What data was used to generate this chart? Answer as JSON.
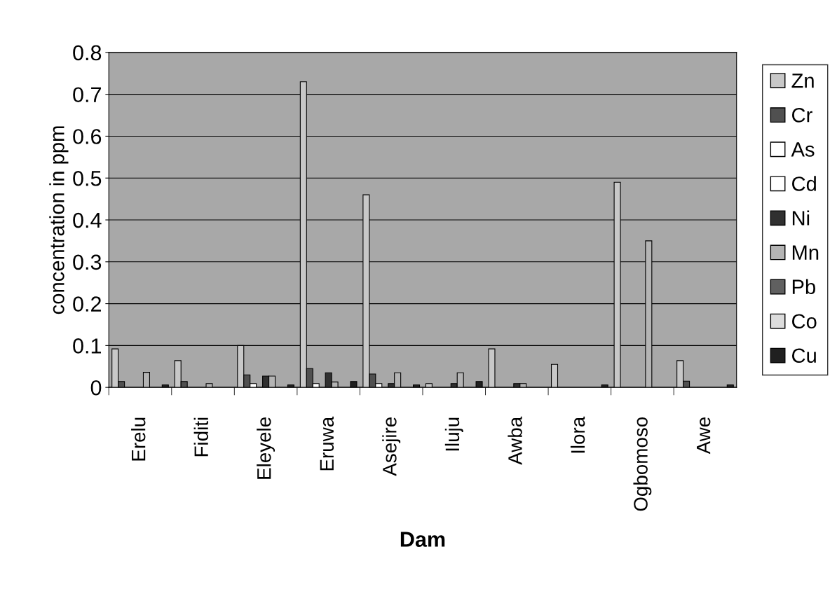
{
  "chart_data": {
    "type": "bar",
    "xlabel": "Dam",
    "ylabel": "concentration in ppm",
    "categories": [
      "Erelu",
      "Fiditi",
      "Eleyele",
      "Eruwa",
      "Asejire",
      "Iluju",
      "Awba",
      "Ilora",
      "Ogbomoso",
      "Awe"
    ],
    "series": [
      {
        "name": "Zn",
        "color": "#c8c8c8",
        "values": [
          0.092,
          0.064,
          0.1,
          0.73,
          0.46,
          0.009,
          0.092,
          0.055,
          0.49,
          0.064
        ]
      },
      {
        "name": "Cr",
        "color": "#505050",
        "values": [
          0.014,
          0.014,
          0.03,
          0.045,
          0.032,
          null,
          null,
          null,
          null,
          0.015
        ]
      },
      {
        "name": "As",
        "color": "#ffffff",
        "values": [
          null,
          null,
          0.009,
          0.009,
          0.009,
          null,
          null,
          null,
          null,
          null
        ]
      },
      {
        "name": "Cd",
        "color": "#ffffff",
        "values": [
          null,
          null,
          null,
          null,
          null,
          null,
          null,
          null,
          null,
          null
        ]
      },
      {
        "name": "Ni",
        "color": "#303030",
        "values": [
          null,
          null,
          0.027,
          0.035,
          0.009,
          0.009,
          0.009,
          null,
          null,
          null
        ]
      },
      {
        "name": "Mn",
        "color": "#b4b4b4",
        "values": [
          0.036,
          0.009,
          0.027,
          0.013,
          0.035,
          0.035,
          0.009,
          null,
          0.35,
          null
        ]
      },
      {
        "name": "Pb",
        "color": "#606060",
        "values": [
          null,
          null,
          null,
          null,
          null,
          null,
          null,
          null,
          null,
          null
        ]
      },
      {
        "name": "Co",
        "color": "#dcdcdc",
        "values": [
          null,
          null,
          null,
          null,
          null,
          null,
          null,
          null,
          null,
          null
        ]
      },
      {
        "name": "Cu",
        "color": "#202020",
        "values": [
          0.006,
          null,
          0.006,
          0.014,
          0.006,
          0.014,
          null,
          0.006,
          null,
          0.006
        ]
      }
    ],
    "ylim": [
      0,
      0.8
    ],
    "yticks": [
      0,
      0.1,
      0.2,
      0.3,
      0.4,
      0.5,
      0.6,
      0.7,
      0.8
    ],
    "grid": "y",
    "legend": "right"
  }
}
